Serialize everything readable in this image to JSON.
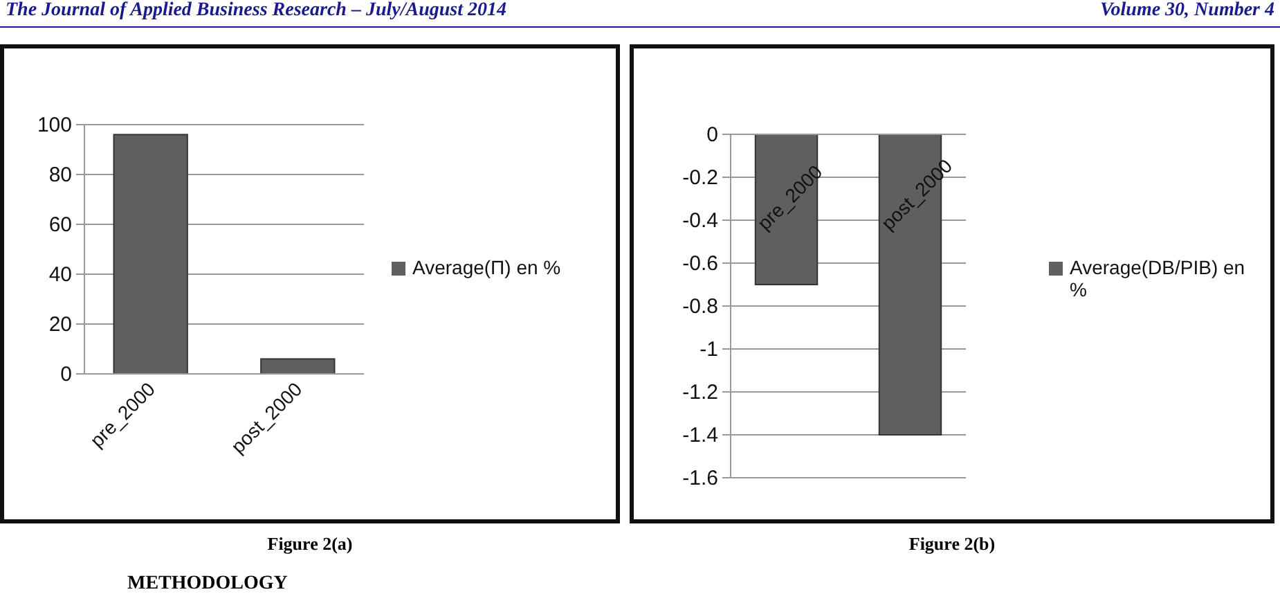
{
  "chart_data": [
    {
      "type": "bar",
      "title": "Figure 2(a)",
      "categories": [
        "pre_2000",
        "post_2000"
      ],
      "series": [
        {
          "name": "Average(Π) en %",
          "color": "#5f5f5f",
          "values": [
            96,
            6
          ]
        }
      ],
      "ylim": [
        0,
        100
      ],
      "yticks": [
        0,
        20,
        40,
        60,
        80,
        100
      ],
      "grid": "y",
      "legend": "right",
      "annotations": [
        "The Journal of Applied Business Research – July/August 2014",
        "METHODOLOGY"
      ]
    },
    {
      "type": "bar",
      "title": "Figure 2(b)",
      "categories": [
        "pre_2000",
        "post_2000"
      ],
      "series": [
        {
          "name": "Average(DB/PIB) en %",
          "color": "#5f5f5f",
          "values": [
            -0.7,
            -1.4
          ]
        }
      ],
      "ylim": [
        -1.6,
        0
      ],
      "yticks": [
        0,
        -0.2,
        -0.4,
        -0.6,
        -0.8,
        -1,
        -1.2,
        -1.4,
        -1.6
      ],
      "grid": "y",
      "legend": "right",
      "annotations": [
        "Volume 30, Number 4"
      ]
    }
  ]
}
